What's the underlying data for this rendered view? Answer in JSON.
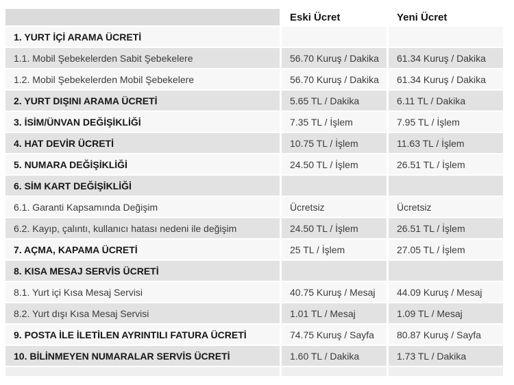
{
  "table": {
    "header": {
      "empty": "",
      "eski": "Eski Ücret",
      "yeni": "Yeni Ücret"
    },
    "rows": [
      {
        "label": "1. YURT İÇİ ARAMA ÜCRETİ",
        "bold": true,
        "eski": "",
        "yeni": ""
      },
      {
        "label": "1.1. Mobil Şebekelerden Sabit Şebekelere",
        "bold": false,
        "eski": "56.70 Kuruş / Dakika",
        "yeni": "61.34 Kuruş / Dakika"
      },
      {
        "label": "1.2. Mobil Şebekelerden Mobil Şebekelere",
        "bold": false,
        "eski": "56.70 Kuruş / Dakika",
        "yeni": "61.34 Kuruş / Dakika"
      },
      {
        "label": "2. YURT DIŞINI ARAMA ÜCRETİ",
        "bold": true,
        "eski": "5.65 TL / Dakika",
        "yeni": "6.11 TL / Dakika"
      },
      {
        "label": "3. İSİM/ÜNVAN DEĞİŞİKLİĞİ",
        "bold": true,
        "eski": "7.35 TL / İşlem",
        "yeni": "7.95 TL / İşlem"
      },
      {
        "label": "4. HAT DEVİR ÜCRETİ",
        "bold": true,
        "eski": "10.75 TL / İşlem",
        "yeni": "11.63 TL / İşlem"
      },
      {
        "label": "5. NUMARA DEĞİŞİKLİĞİ",
        "bold": true,
        "eski": "24.50 TL / İşlem",
        "yeni": "26.51 TL / İşlem"
      },
      {
        "label": "6. SİM KART DEĞİŞİKLİĞİ",
        "bold": true,
        "eski": "",
        "yeni": ""
      },
      {
        "label": "6.1. Garanti Kapsamında Değişim",
        "bold": false,
        "eski": "Ücretsiz",
        "yeni": "Ücretsiz"
      },
      {
        "label": "6.2. Kayıp, çalıntı, kullanıcı hatası nedeni ile değişim",
        "bold": false,
        "eski": "24.50 TL / İşlem",
        "yeni": "26.51 TL / İşlem"
      },
      {
        "label": "7. AÇMA, KAPAMA ÜCRETİ",
        "bold": true,
        "eski": "25 TL / İşlem",
        "yeni": "27.05 TL / İşlem"
      },
      {
        "label": "8. KISA MESAJ SERVİS ÜCRETİ",
        "bold": true,
        "eski": "",
        "yeni": ""
      },
      {
        "label": "8.1. Yurt içi Kısa Mesaj Servisi",
        "bold": false,
        "eski": "40.75 Kuruş / Mesaj",
        "yeni": "44.09 Kuruş / Mesaj"
      },
      {
        "label": "8.2. Yurt dışı Kısa Mesaj Servisi",
        "bold": false,
        "eski": "1.01 TL / Mesaj",
        "yeni": "1.09 TL / Mesaj"
      },
      {
        "label": "9. POSTA İLE İLETİLEN AYRINTILI FATURA ÜCRETİ",
        "bold": true,
        "eski": "74.75 Kuruş / Sayfa",
        "yeni": "80.87 Kuruş / Sayfa"
      },
      {
        "label": "10. BİLİNMEYEN NUMARALAR SERVİS ÜCRETİ",
        "bold": true,
        "eski": "1.60 TL / Dakika",
        "yeni": "1.73 TL / Dakika"
      }
    ]
  },
  "colors": {
    "row_light": "#f7f7f7",
    "row_gray": "#e2e2e2",
    "header_empty_bg": "#dbdbdb",
    "header_bg": "#ffffff",
    "text": "#3b3b3b",
    "text_bold": "#161616",
    "partial_row": "#efefef"
  },
  "chart_data": {
    "type": "table",
    "columns": [
      "",
      "Eski Ücret",
      "Yeni Ücret"
    ],
    "rows": [
      [
        "1. YURT İÇİ ARAMA ÜCRETİ",
        "",
        ""
      ],
      [
        "1.1. Mobil Şebekelerden Sabit Şebekelere",
        "56.70 Kuruş / Dakika",
        "61.34 Kuruş / Dakika"
      ],
      [
        "1.2. Mobil Şebekelerden Mobil Şebekelere",
        "56.70 Kuruş / Dakika",
        "61.34 Kuruş / Dakika"
      ],
      [
        "2. YURT DIŞINI ARAMA ÜCRETİ",
        "5.65 TL / Dakika",
        "6.11 TL / Dakika"
      ],
      [
        "3. İSİM/ÜNVAN DEĞİŞİKLİĞİ",
        "7.35 TL / İşlem",
        "7.95 TL / İşlem"
      ],
      [
        "4. HAT DEVİR ÜCRETİ",
        "10.75 TL / İşlem",
        "11.63 TL / İşlem"
      ],
      [
        "5. NUMARA DEĞİŞİKLİĞİ",
        "24.50 TL / İşlem",
        "26.51 TL / İşlem"
      ],
      [
        "6. SİM KART DEĞİŞİKLİĞİ",
        "",
        ""
      ],
      [
        "6.1. Garanti Kapsamında Değişim",
        "Ücretsiz",
        "Ücretsiz"
      ],
      [
        "6.2. Kayıp, çalıntı, kullanıcı hatası nedeni ile değişim",
        "24.50 TL / İşlem",
        "26.51 TL / İşlem"
      ],
      [
        "7. AÇMA, KAPAMA ÜCRETİ",
        "25 TL / İşlem",
        "27.05 TL / İşlem"
      ],
      [
        "8. KISA MESAJ SERVİS ÜCRETİ",
        "",
        ""
      ],
      [
        "8.1. Yurt içi Kısa Mesaj Servisi",
        "40.75 Kuruş / Mesaj",
        "44.09 Kuruş / Mesaj"
      ],
      [
        "8.2. Yurt dışı Kısa Mesaj Servisi",
        "1.01 TL / Mesaj",
        "1.09 TL / Mesaj"
      ],
      [
        "9. POSTA İLE İLETİLEN AYRINTILI FATURA ÜCRETİ",
        "74.75 Kuruş / Sayfa",
        "80.87 Kuruş / Sayfa"
      ],
      [
        "10. BİLİNMEYEN NUMARALAR SERVİS ÜCRETİ",
        "1.60 TL / Dakika",
        "1.73 TL / Dakika"
      ]
    ]
  }
}
